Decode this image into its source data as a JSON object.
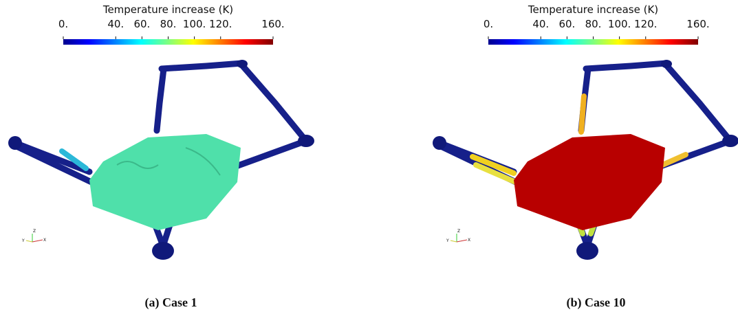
{
  "panels": [
    {
      "colorbar": {
        "title": "Temperature increase (K)",
        "lim": [
          0,
          160
        ],
        "ticks": [
          {
            "value": 0,
            "label": "0."
          },
          {
            "value": 40,
            "label": "40."
          },
          {
            "value": 60,
            "label": "60."
          },
          {
            "value": 80,
            "label": "80."
          },
          {
            "value": 100,
            "label": "100."
          },
          {
            "value": 120,
            "label": "120."
          },
          {
            "value": 160,
            "label": "160."
          }
        ]
      },
      "triad": [
        "Z",
        "Y",
        "X"
      ],
      "caption": "(a) Case 1"
    },
    {
      "colorbar": {
        "title": "Temperature increase (K)",
        "lim": [
          0,
          160
        ],
        "ticks": [
          {
            "value": 0,
            "label": "0."
          },
          {
            "value": 40,
            "label": "40."
          },
          {
            "value": 60,
            "label": "60."
          },
          {
            "value": 80,
            "label": "80."
          },
          {
            "value": 100,
            "label": "100."
          },
          {
            "value": 120,
            "label": "120."
          },
          {
            "value": 160,
            "label": "160."
          }
        ]
      },
      "triad": [
        "Z",
        "Y",
        "X"
      ],
      "caption": "(b) Case 10"
    }
  ]
}
